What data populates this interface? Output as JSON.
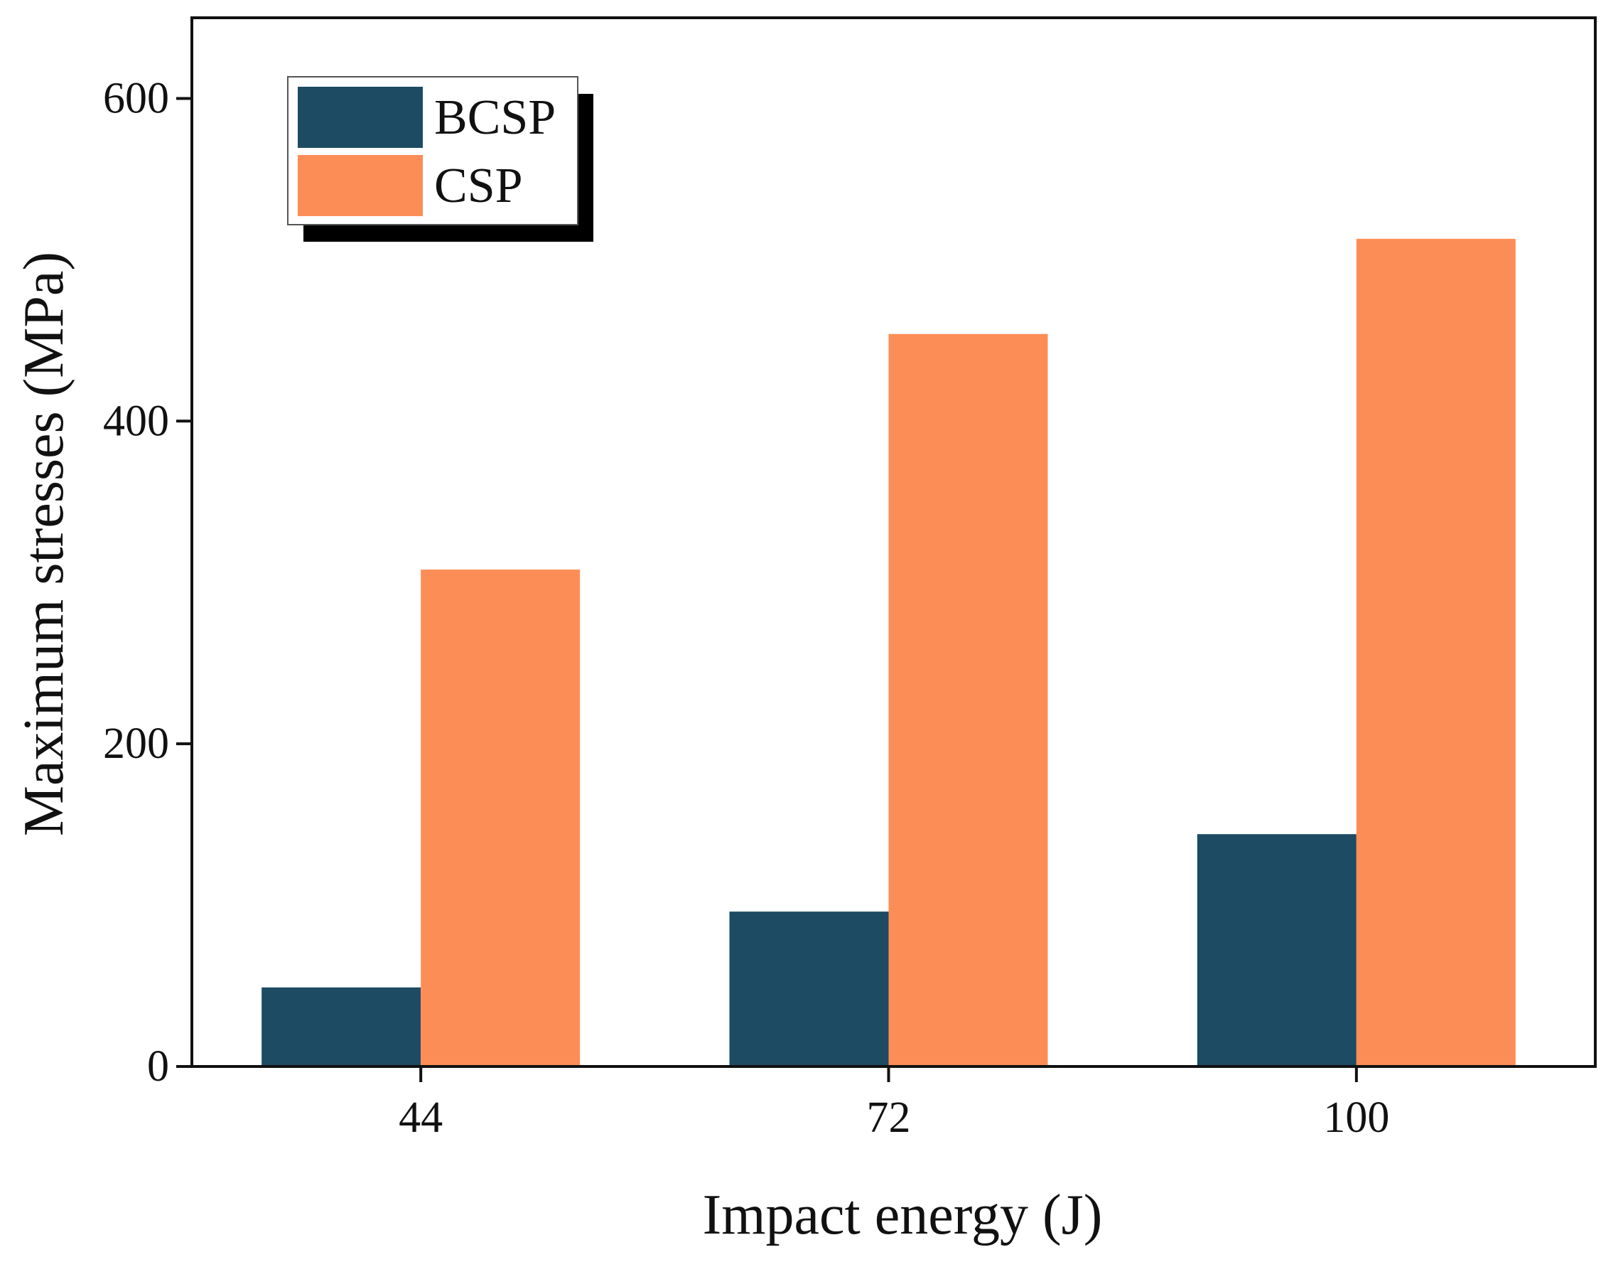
{
  "chart_data": {
    "type": "bar",
    "title": "",
    "xlabel": "Impact energy (J)",
    "ylabel": "Maximum stresses (MPa)",
    "categories": [
      "44",
      "72",
      "100"
    ],
    "series": [
      {
        "name": "BCSP",
        "color": "#1d4b63",
        "values": [
          49,
          96,
          144
        ]
      },
      {
        "name": "CSP",
        "color": "#fd8d57",
        "values": [
          308,
          454,
          513
        ]
      }
    ],
    "ylim": [
      0,
      650
    ],
    "yticks": [
      0,
      200,
      400,
      600
    ],
    "grid": false,
    "legend_position": "top-left"
  }
}
